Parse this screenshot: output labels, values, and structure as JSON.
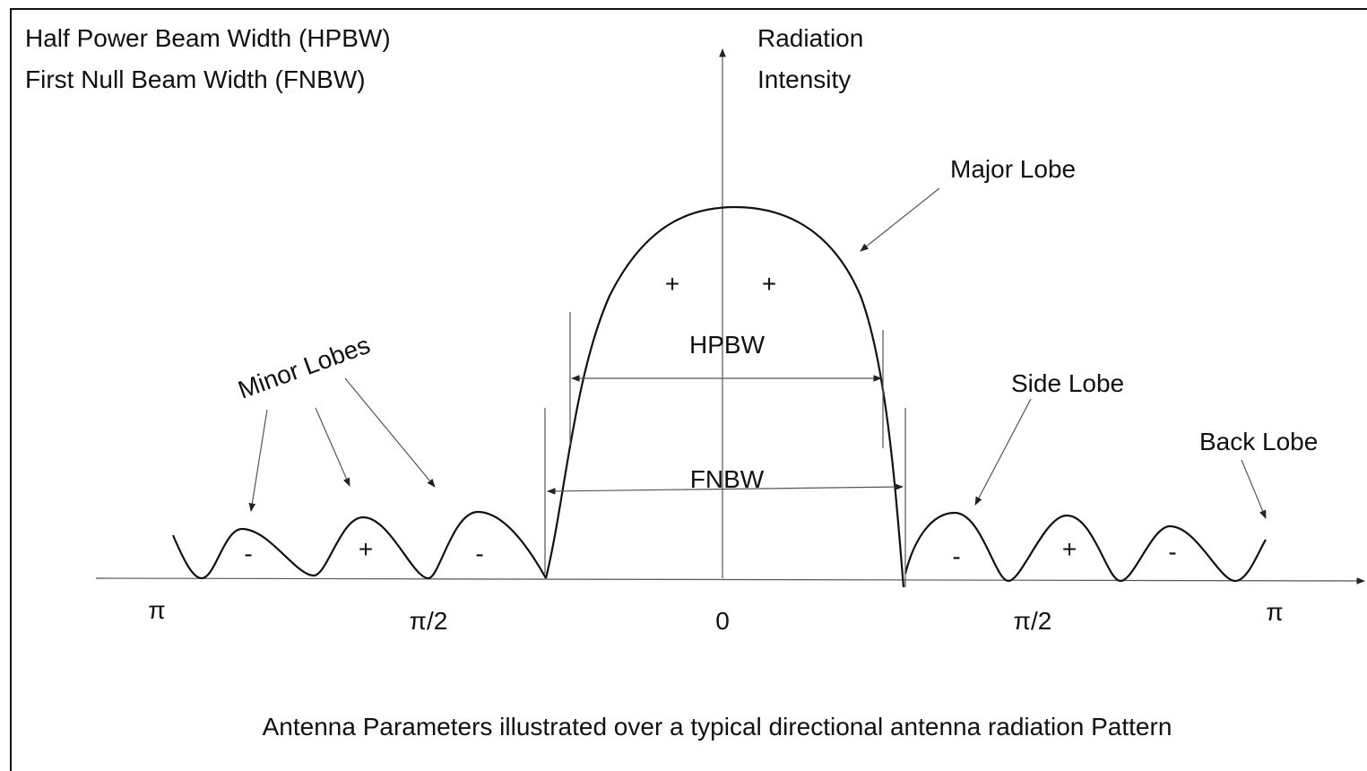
{
  "legend": [
    "Half Power Beam Width  (HPBW)",
    "First Null Beam Width (FNBW)"
  ],
  "axis_label": [
    "Radiation",
    "Intensity"
  ],
  "annotations": {
    "major_lobe": "Major Lobe",
    "minor_lobes": "Minor Lobes",
    "side_lobe": "Side Lobe",
    "back_lobe": "Back Lobe"
  },
  "widths": {
    "hpbw": "HPBW",
    "fnbw": "FNBW"
  },
  "lobe_signs": [
    "-",
    "+",
    "-",
    "+",
    "+",
    "-",
    "+",
    "-"
  ],
  "x_labels": [
    "π",
    "π/2",
    "0",
    "π/2",
    "π"
  ],
  "caption": "Antenna Parameters illustrated over a typical directional antenna radiation Pattern"
}
